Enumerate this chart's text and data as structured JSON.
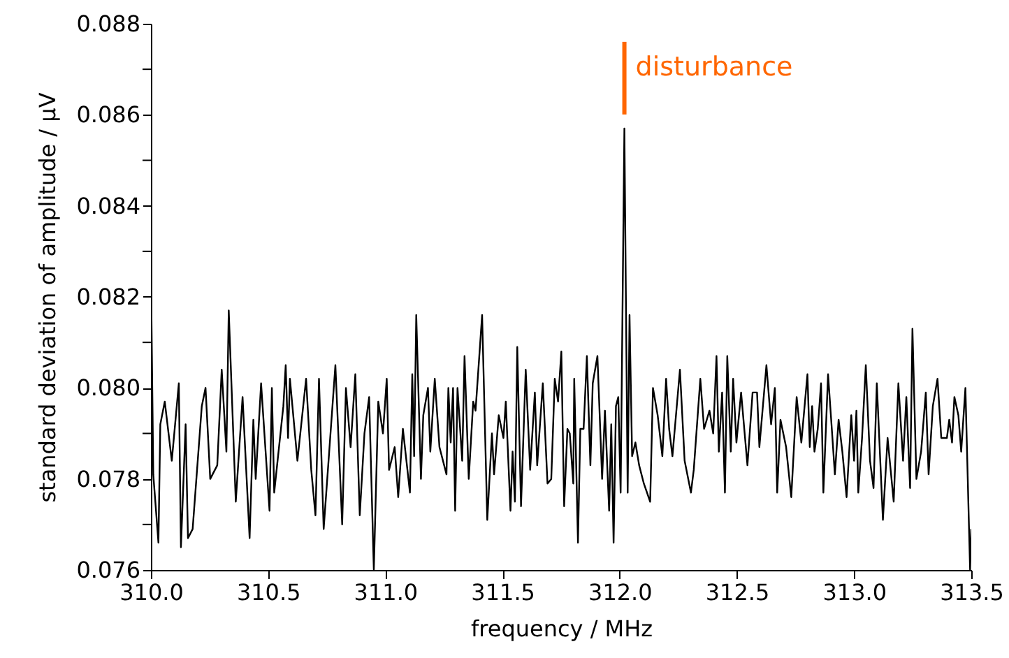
{
  "chart_data": {
    "type": "line",
    "xlabel": "frequency / MHz",
    "ylabel": "standard deviation of amplitude / µV",
    "xlim": [
      310,
      313.5
    ],
    "ylim": [
      0.076,
      0.088
    ],
    "xticks": [
      {
        "value": 310,
        "label": "310.0"
      },
      {
        "value": 310.5,
        "label": "310.5"
      },
      {
        "value": 311,
        "label": "311.0"
      },
      {
        "value": 311.5,
        "label": "311.5"
      },
      {
        "value": 312,
        "label": "312.0"
      },
      {
        "value": 312.5,
        "label": "312.5"
      },
      {
        "value": 313,
        "label": "313.0"
      },
      {
        "value": 313.5,
        "label": "313.5"
      }
    ],
    "yticks": [
      0.076,
      {
        "value": 0.077,
        "label": null
      },
      0.078,
      {
        "value": 0.079,
        "label": null
      },
      {
        "value": 0.08,
        "label": "0.080"
      },
      {
        "value": 0.081,
        "label": null
      },
      0.082,
      {
        "value": 0.083,
        "label": null
      },
      0.084,
      {
        "value": 0.085,
        "label": null
      },
      0.086,
      {
        "value": 0.087,
        "label": null
      },
      0.088
    ],
    "grid": false,
    "marker": "none",
    "line_style": "solid",
    "annotations": [
      {
        "text": "disturbance",
        "x": 312.02,
        "y": 0.0857
      }
    ],
    "series": [
      {
        "color": "#000000",
        "x": [
          310.0,
          310.01,
          310.032,
          310.04,
          310.059,
          310.089,
          310.119,
          310.128,
          310.148,
          310.158,
          310.178,
          310.217,
          310.233,
          310.253,
          310.283,
          310.302,
          310.322,
          310.332,
          310.362,
          310.391,
          310.421,
          310.437,
          310.447,
          310.47,
          310.506,
          310.516,
          310.526,
          310.565,
          310.575,
          310.585,
          310.593,
          310.625,
          310.662,
          310.684,
          310.702,
          310.717,
          310.737,
          310.787,
          310.816,
          310.832,
          310.852,
          310.872,
          310.891,
          310.911,
          310.931,
          310.951,
          310.97,
          310.99,
          311.006,
          311.016,
          311.04,
          311.055,
          311.075,
          311.105,
          311.115,
          311.123,
          311.132,
          311.152,
          311.162,
          311.182,
          311.192,
          311.211,
          311.231,
          311.261,
          311.269,
          311.279,
          311.289,
          311.298,
          311.308,
          311.328,
          311.338,
          311.356,
          311.375,
          311.385,
          311.413,
          311.435,
          311.455,
          311.464,
          311.484,
          311.504,
          311.514,
          311.534,
          311.543,
          311.553,
          311.563,
          311.579,
          311.599,
          311.618,
          311.638,
          311.648,
          311.672,
          311.692,
          311.708,
          311.723,
          311.737,
          311.751,
          311.763,
          311.777,
          311.787,
          311.802,
          311.806,
          311.822,
          311.832,
          311.846,
          311.86,
          311.875,
          311.885,
          311.905,
          311.925,
          311.937,
          311.955,
          311.964,
          311.974,
          311.984,
          311.994,
          312.004,
          312.02,
          312.034,
          312.042,
          312.053,
          312.067,
          312.083,
          312.103,
          312.13,
          312.142,
          312.162,
          312.182,
          312.198,
          312.211,
          312.225,
          312.257,
          312.277,
          312.304,
          312.316,
          312.344,
          312.36,
          312.383,
          312.399,
          312.413,
          312.423,
          312.437,
          312.449,
          312.459,
          312.474,
          312.484,
          312.498,
          312.518,
          312.545,
          312.567,
          312.586,
          312.596,
          312.626,
          312.646,
          312.662,
          312.672,
          312.686,
          312.71,
          312.732,
          312.755,
          312.775,
          312.801,
          312.811,
          312.821,
          312.831,
          312.845,
          312.859,
          312.869,
          312.889,
          312.905,
          312.918,
          312.934,
          312.95,
          312.968,
          312.988,
          313.0,
          313.01,
          313.018,
          313.034,
          313.05,
          313.068,
          313.083,
          313.097,
          313.123,
          313.143,
          313.169,
          313.189,
          313.209,
          313.223,
          313.239,
          313.249,
          313.266,
          313.286,
          313.306,
          313.318,
          313.336,
          313.356,
          313.372,
          313.396,
          313.406,
          313.418,
          313.428,
          313.445,
          313.457,
          313.475,
          313.495,
          313.5
        ],
        "values": [
          0.0826,
          0.0781,
          0.0766,
          0.0792,
          0.0797,
          0.0784,
          0.0801,
          0.0765,
          0.0792,
          0.0767,
          0.0769,
          0.0796,
          0.08,
          0.078,
          0.0783,
          0.0804,
          0.0786,
          0.0817,
          0.0775,
          0.0798,
          0.0767,
          0.0793,
          0.078,
          0.0801,
          0.0773,
          0.08,
          0.0777,
          0.0796,
          0.0805,
          0.0789,
          0.0802,
          0.0784,
          0.0802,
          0.0782,
          0.0772,
          0.0802,
          0.0769,
          0.0805,
          0.077,
          0.08,
          0.0787,
          0.0803,
          0.0772,
          0.079,
          0.0798,
          0.076,
          0.0797,
          0.079,
          0.0802,
          0.0782,
          0.0787,
          0.0776,
          0.0791,
          0.0777,
          0.0803,
          0.0785,
          0.0816,
          0.078,
          0.0794,
          0.08,
          0.0786,
          0.0802,
          0.0787,
          0.0781,
          0.08,
          0.0788,
          0.08,
          0.0773,
          0.08,
          0.0784,
          0.0807,
          0.078,
          0.0797,
          0.0795,
          0.0816,
          0.0771,
          0.079,
          0.0781,
          0.0794,
          0.0789,
          0.0797,
          0.0773,
          0.0786,
          0.0775,
          0.0809,
          0.0774,
          0.0804,
          0.0782,
          0.0799,
          0.0783,
          0.0801,
          0.0779,
          0.078,
          0.0802,
          0.0797,
          0.0808,
          0.0774,
          0.0791,
          0.079,
          0.0779,
          0.0802,
          0.0766,
          0.0791,
          0.0791,
          0.0807,
          0.0783,
          0.0801,
          0.0807,
          0.078,
          0.0795,
          0.0773,
          0.0792,
          0.0766,
          0.0796,
          0.0798,
          0.0777,
          0.0857,
          0.0777,
          0.0816,
          0.0785,
          0.0788,
          0.0783,
          0.0779,
          0.0775,
          0.08,
          0.0794,
          0.0785,
          0.0802,
          0.0791,
          0.0785,
          0.0804,
          0.0784,
          0.0777,
          0.0782,
          0.0802,
          0.0791,
          0.0795,
          0.079,
          0.0807,
          0.0786,
          0.0799,
          0.0777,
          0.0807,
          0.0786,
          0.0802,
          0.0788,
          0.0799,
          0.0783,
          0.0799,
          0.0799,
          0.0787,
          0.0805,
          0.0792,
          0.08,
          0.0777,
          0.0793,
          0.0787,
          0.0776,
          0.0798,
          0.0788,
          0.0803,
          0.0787,
          0.0796,
          0.0786,
          0.0791,
          0.0801,
          0.0777,
          0.0803,
          0.0791,
          0.0781,
          0.0793,
          0.0786,
          0.0776,
          0.0794,
          0.0784,
          0.0795,
          0.0777,
          0.0789,
          0.0805,
          0.0784,
          0.0778,
          0.0801,
          0.0771,
          0.0789,
          0.0775,
          0.0801,
          0.0784,
          0.0798,
          0.0778,
          0.0813,
          0.078,
          0.0786,
          0.0799,
          0.0781,
          0.0796,
          0.0802,
          0.0789,
          0.0789,
          0.0793,
          0.0788,
          0.0798,
          0.0794,
          0.0786,
          0.08,
          0.076,
          0.0769
        ]
      }
    ]
  }
}
